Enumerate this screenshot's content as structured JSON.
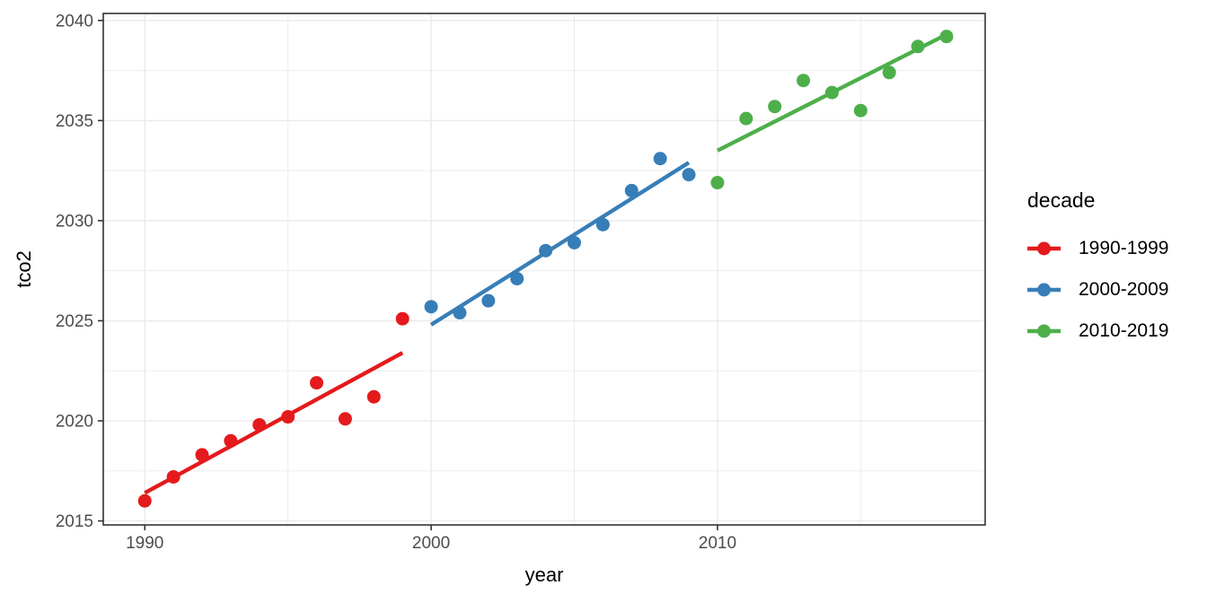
{
  "chart_data": {
    "type": "scatter",
    "title": "",
    "xlabel": "year",
    "ylabel": "tco2",
    "legend_title": "decade",
    "legend_position": "right",
    "grid": true,
    "panel_background": "#FFFFFF",
    "panel_border_color": "#333333",
    "grid_color": "#EBEBEB",
    "axis_text_color": "#4D4D4D",
    "axis_title_color": "#000000",
    "x_domain": [
      1988.55,
      2019.35
    ],
    "y_domain": [
      2014.8,
      2040.35
    ],
    "x_major_ticks": [
      1990,
      2000,
      2010
    ],
    "x_minor_ticks": [
      1995,
      2005,
      2015
    ],
    "y_major_ticks": [
      2015,
      2020,
      2025,
      2030,
      2035,
      2040
    ],
    "y_minor_ticks": [
      2017.5,
      2022.5,
      2027.5,
      2032.5,
      2037.5
    ],
    "series": [
      {
        "name": "1990-1999",
        "color": "#E41A1C",
        "x": [
          1990,
          1991,
          1992,
          1993,
          1994,
          1995,
          1996,
          1997,
          1998,
          1999
        ],
        "y": [
          2016.0,
          2017.2,
          2018.3,
          2019.0,
          2019.8,
          2020.2,
          2021.9,
          2020.1,
          2021.2,
          2025.1
        ],
        "trend": {
          "x1": 1990,
          "y1": 2016.4,
          "x2": 1999,
          "y2": 2023.4
        }
      },
      {
        "name": "2000-2009",
        "color": "#377EB8",
        "x": [
          2000,
          2001,
          2002,
          2003,
          2004,
          2005,
          2006,
          2007,
          2008,
          2009
        ],
        "y": [
          2025.7,
          2025.4,
          2026.0,
          2027.1,
          2028.5,
          2028.9,
          2029.8,
          2031.5,
          2033.1,
          2032.3
        ],
        "trend": {
          "x1": 2000,
          "y1": 2024.8,
          "x2": 2009,
          "y2": 2032.9
        }
      },
      {
        "name": "2010-2019",
        "color": "#4DAF4A",
        "x": [
          2010,
          2011,
          2012,
          2013,
          2014,
          2015,
          2016,
          2017,
          2018
        ],
        "y": [
          2031.9,
          2035.1,
          2035.7,
          2037.0,
          2036.4,
          2035.5,
          2037.4,
          2038.7,
          2039.2
        ],
        "trend": {
          "x1": 2010,
          "y1": 2033.5,
          "x2": 2018,
          "y2": 2039.3
        }
      }
    ]
  }
}
